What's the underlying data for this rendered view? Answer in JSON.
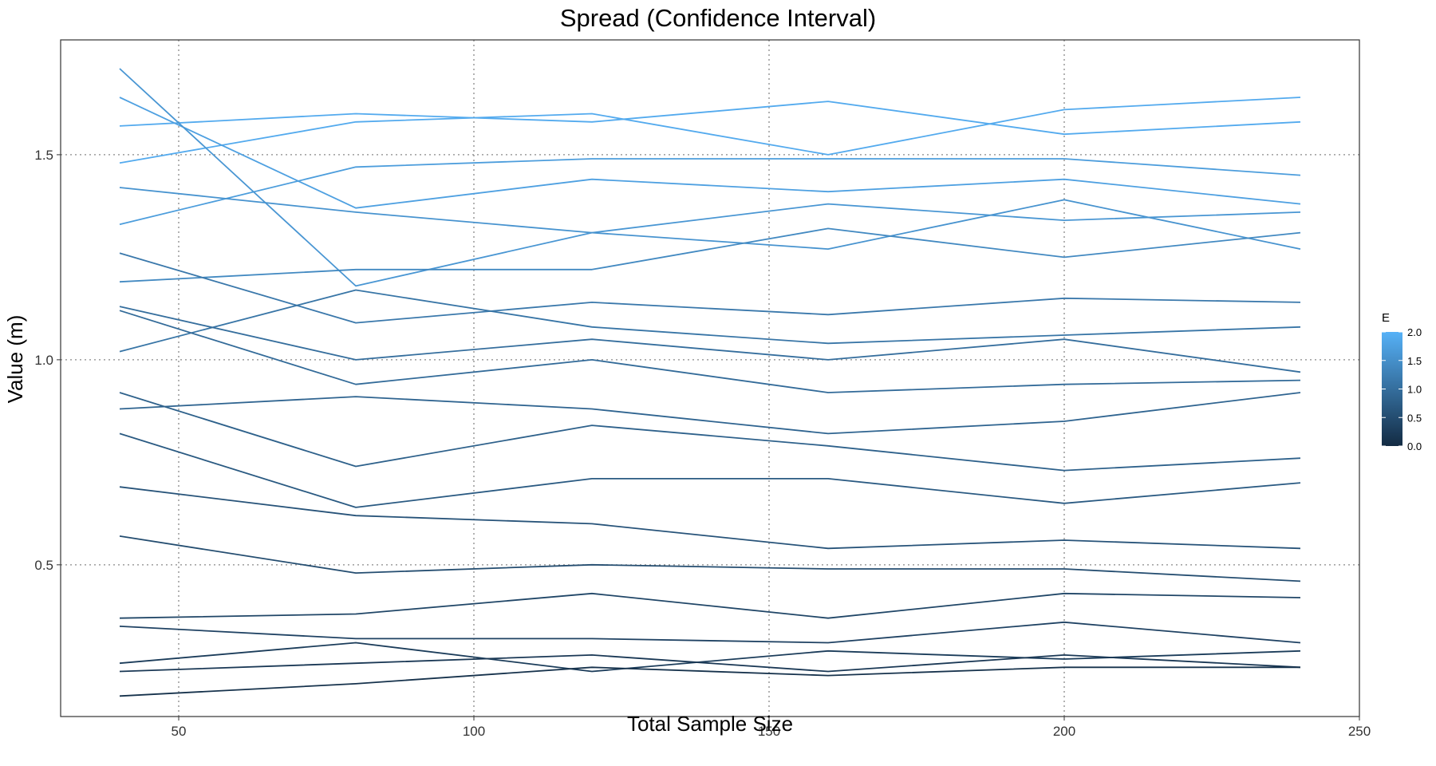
{
  "chart_data": {
    "type": "line",
    "title": "Spread (Confidence Interval)",
    "xlabel": "Total Sample Size",
    "ylabel": "Value (m)",
    "xlim": [
      30,
      250
    ],
    "ylim": [
      0.13,
      1.78
    ],
    "x_ticks": [
      50,
      100,
      150,
      200,
      250
    ],
    "x_tick_labels": [
      "50",
      "100",
      "150",
      "200",
      "250"
    ],
    "y_ticks": [
      0.5,
      1.0,
      1.5
    ],
    "y_tick_labels": [
      "0.5",
      "1.0",
      "1.5"
    ],
    "grid": "dotted, major only",
    "legend": {
      "title": "E",
      "placement": "right",
      "labels": [
        "2.0",
        "1.5",
        "1.0",
        "0.5",
        "0.0"
      ],
      "values": [
        2.0,
        1.5,
        1.0,
        0.5,
        0.0
      ],
      "color_low": "#132B43",
      "color_high": "#56B1F7"
    },
    "x": [
      40,
      80,
      120,
      160,
      200,
      240
    ],
    "series": [
      {
        "e": 1.9,
        "values": [
          1.57,
          1.6,
          1.58,
          1.63,
          1.55,
          1.58
        ]
      },
      {
        "e": 1.9,
        "values": [
          1.48,
          1.58,
          1.6,
          1.5,
          1.61,
          1.64
        ]
      },
      {
        "e": 1.75,
        "values": [
          1.64,
          1.37,
          1.44,
          1.41,
          1.44,
          1.38
        ]
      },
      {
        "e": 1.7,
        "values": [
          1.33,
          1.47,
          1.49,
          1.49,
          1.49,
          1.45
        ]
      },
      {
        "e": 1.6,
        "values": [
          1.71,
          1.18,
          1.31,
          1.38,
          1.34,
          1.36
        ]
      },
      {
        "e": 1.55,
        "values": [
          1.42,
          1.36,
          1.31,
          1.27,
          1.39,
          1.27
        ]
      },
      {
        "e": 1.4,
        "values": [
          1.19,
          1.22,
          1.22,
          1.32,
          1.25,
          1.31
        ]
      },
      {
        "e": 1.15,
        "values": [
          1.26,
          1.09,
          1.14,
          1.11,
          1.15,
          1.14
        ]
      },
      {
        "e": 1.1,
        "values": [
          1.02,
          1.17,
          1.08,
          1.04,
          1.06,
          1.08
        ]
      },
      {
        "e": 1.0,
        "values": [
          1.13,
          1.0,
          1.05,
          1.0,
          1.05,
          0.97
        ]
      },
      {
        "e": 0.95,
        "values": [
          1.12,
          0.94,
          1.0,
          0.92,
          0.94,
          0.95
        ]
      },
      {
        "e": 0.85,
        "values": [
          0.88,
          0.91,
          0.88,
          0.82,
          0.85,
          0.92
        ]
      },
      {
        "e": 0.8,
        "values": [
          0.92,
          0.74,
          0.84,
          0.79,
          0.73,
          0.76
        ]
      },
      {
        "e": 0.7,
        "values": [
          0.82,
          0.64,
          0.71,
          0.71,
          0.65,
          0.7
        ]
      },
      {
        "e": 0.6,
        "values": [
          0.69,
          0.62,
          0.6,
          0.54,
          0.56,
          0.54
        ]
      },
      {
        "e": 0.5,
        "values": [
          0.57,
          0.48,
          0.5,
          0.49,
          0.49,
          0.46
        ]
      },
      {
        "e": 0.4,
        "values": [
          0.37,
          0.38,
          0.43,
          0.37,
          0.43,
          0.42
        ]
      },
      {
        "e": 0.35,
        "values": [
          0.35,
          0.32,
          0.32,
          0.31,
          0.36,
          0.31
        ]
      },
      {
        "e": 0.25,
        "values": [
          0.26,
          0.31,
          0.24,
          0.29,
          0.27,
          0.29
        ]
      },
      {
        "e": 0.2,
        "values": [
          0.24,
          0.26,
          0.28,
          0.24,
          0.28,
          0.25
        ]
      },
      {
        "e": 0.1,
        "values": [
          0.18,
          0.21,
          0.25,
          0.23,
          0.25,
          0.25
        ]
      }
    ]
  }
}
